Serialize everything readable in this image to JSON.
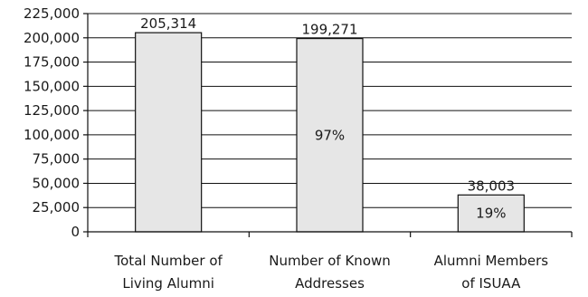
{
  "chart_data": {
    "type": "bar",
    "title": "",
    "xlabel": "",
    "ylabel": "",
    "ylim": [
      0,
      225000
    ],
    "y_ticks": [
      "0",
      "25,000",
      "50,000",
      "75,000",
      "100,000",
      "125,000",
      "150,000",
      "175,000",
      "200,000",
      "225,000"
    ],
    "grid": true,
    "categories": [
      [
        "Total Number of",
        "Living Alumni"
      ],
      [
        "Number of Known",
        "Addresses"
      ],
      [
        "Alumni Members",
        "of ISUAA"
      ]
    ],
    "values": [
      205314,
      199271,
      38003
    ],
    "value_labels": [
      "205,314",
      "199,271",
      "38,003"
    ],
    "percent_labels": [
      "",
      "97%",
      "19%"
    ],
    "bar_color": "#e6e6e6"
  }
}
